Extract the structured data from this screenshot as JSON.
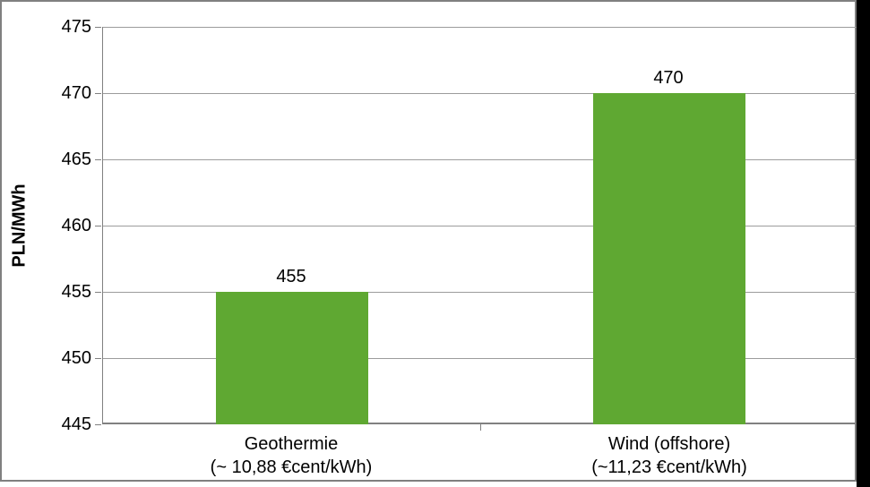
{
  "chart_data": {
    "type": "bar",
    "title": "",
    "xlabel": "",
    "ylabel": "PLN/MWh",
    "ylim": [
      445,
      475
    ],
    "yticks": [
      445,
      450,
      455,
      460,
      465,
      470,
      475
    ],
    "grid": true,
    "legend_position": "none",
    "categories": [
      "Geothermie",
      "Wind (offshore)"
    ],
    "category_sublabels": [
      "(~ 10,88 €cent/kWh)",
      "(~11,23 €cent/kWh)"
    ],
    "values": [
      455,
      470
    ]
  },
  "colors": {
    "bar": "#5FA832",
    "gridline": "#9c9c9c",
    "axis": "#808080",
    "frame_border": "#808080",
    "text": "#000000",
    "background": "#ffffff",
    "right_strip": "#000000"
  }
}
